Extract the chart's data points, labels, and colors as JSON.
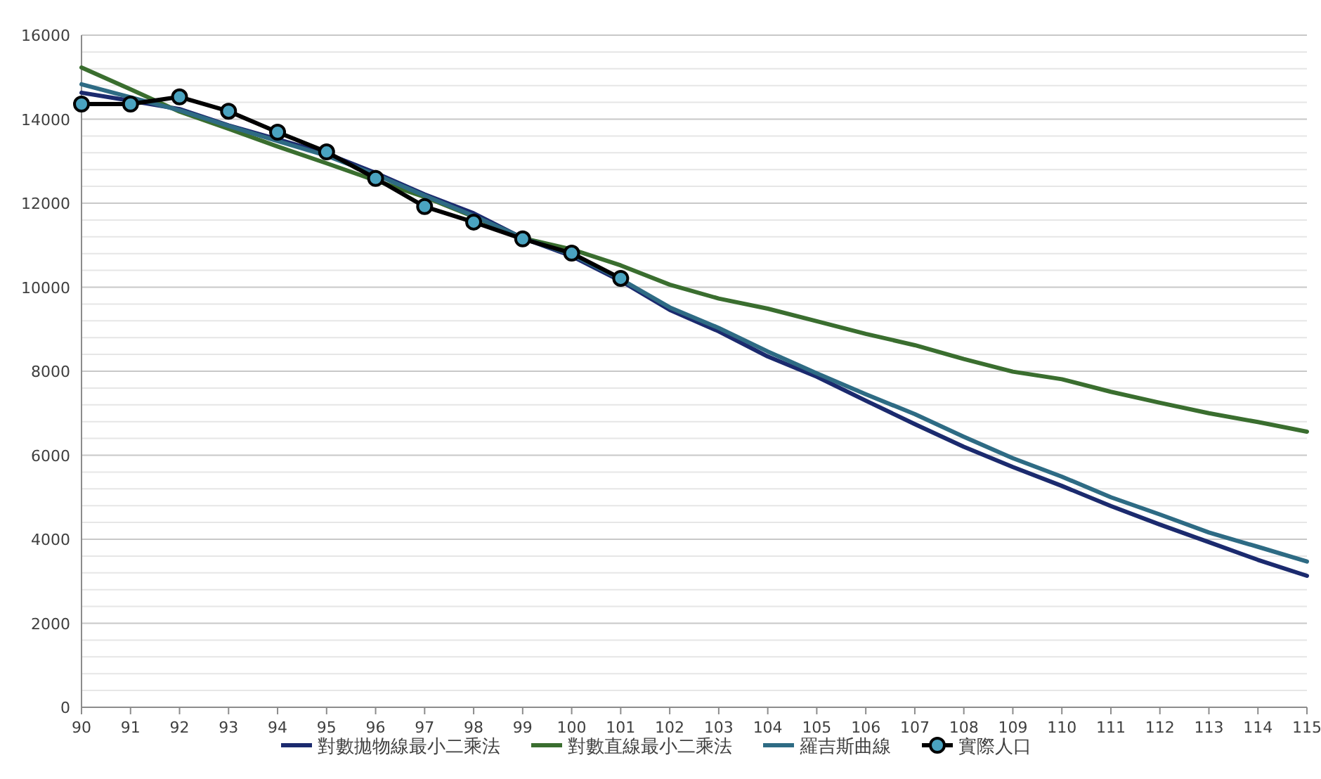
{
  "chart_data": {
    "type": "line",
    "x": [
      90,
      91,
      92,
      93,
      94,
      95,
      96,
      97,
      98,
      99,
      100,
      101,
      102,
      103,
      104,
      105,
      106,
      107,
      108,
      109,
      110,
      111,
      112,
      113,
      114,
      115
    ],
    "xlim": [
      90,
      115
    ],
    "xticks": [
      90,
      91,
      92,
      93,
      94,
      95,
      96,
      97,
      98,
      99,
      100,
      101,
      102,
      103,
      104,
      105,
      106,
      107,
      108,
      109,
      110,
      111,
      112,
      113,
      114,
      115
    ],
    "ylim": [
      0,
      16000
    ],
    "yticks": [
      0,
      {
        "value": 400,
        "label": null
      },
      {
        "value": 800,
        "label": null
      },
      {
        "value": 1200,
        "label": null
      },
      {
        "value": 1600,
        "label": null
      },
      2000,
      {
        "value": 2400,
        "label": null
      },
      {
        "value": 2800,
        "label": null
      },
      {
        "value": 3200,
        "label": null
      },
      {
        "value": 3600,
        "label": null
      },
      4000,
      {
        "value": 4400,
        "label": null
      },
      {
        "value": 4800,
        "label": null
      },
      {
        "value": 5200,
        "label": null
      },
      {
        "value": 5600,
        "label": null
      },
      6000,
      {
        "value": 6400,
        "label": null
      },
      {
        "value": 6800,
        "label": null
      },
      {
        "value": 7200,
        "label": null
      },
      {
        "value": 7600,
        "label": null
      },
      8000,
      {
        "value": 8400,
        "label": null
      },
      {
        "value": 8800,
        "label": null
      },
      {
        "value": 9200,
        "label": null
      },
      {
        "value": 9600,
        "label": null
      },
      10000,
      {
        "value": 10400,
        "label": null
      },
      {
        "value": 10800,
        "label": null
      },
      {
        "value": 11200,
        "label": null
      },
      {
        "value": 11600,
        "label": null
      },
      12000,
      {
        "value": 12400,
        "label": null
      },
      {
        "value": 12800,
        "label": null
      },
      {
        "value": 13200,
        "label": null
      },
      {
        "value": 13600,
        "label": null
      },
      14000,
      {
        "value": 14400,
        "label": null
      },
      {
        "value": 14800,
        "label": null
      },
      {
        "value": 15200,
        "label": null
      },
      {
        "value": 15600,
        "label": null
      },
      16000
    ],
    "grid": "y",
    "legend": "bottom",
    "series": [
      {
        "name": "對數拋物線最小二乘法",
        "color": "#1b2a6e",
        "marker": "none",
        "values": [
          14630,
          14440,
          14240,
          13850,
          13520,
          13180,
          12720,
          12210,
          11760,
          11170,
          10740,
          10150,
          9460,
          8950,
          8350,
          7870,
          7300,
          6740,
          6200,
          5720,
          5270,
          4790,
          4350,
          3930,
          3510,
          3130
        ]
      },
      {
        "name": "對數直線最小二乘法",
        "color": "#3a6e2f",
        "marker": "none",
        "values": [
          15230,
          14710,
          14180,
          13770,
          13350,
          12950,
          12540,
          12150,
          11680,
          11170,
          10900,
          10520,
          10060,
          9730,
          9490,
          9190,
          8890,
          8620,
          8290,
          7990,
          7810,
          7510,
          7250,
          7000,
          6790,
          6560
        ]
      },
      {
        "name": "羅吉斯曲線",
        "color": "#2e6b84",
        "marker": "none",
        "values": [
          14830,
          14520,
          14210,
          13840,
          13480,
          13130,
          12680,
          12180,
          11700,
          11170,
          10780,
          10190,
          9520,
          9030,
          8470,
          7950,
          7450,
          6980,
          6440,
          5930,
          5490,
          5000,
          4590,
          4160,
          3820,
          3470
        ]
      },
      {
        "name": "實際人口",
        "color": "#000000",
        "marker": "circle",
        "colors": [
          "#4aa3c0",
          "#4aa3c0",
          "#4aa3c0",
          "#4aa3c0",
          "#4aa3c0",
          "#4aa3c0",
          "#4aa3c0",
          "#4aa3c0",
          "#4aa3c0",
          "#4aa3c0",
          "#4aa3c0",
          "#4aa3c0"
        ],
        "x": [
          90,
          91,
          92,
          93,
          94,
          95,
          96,
          97,
          98,
          99,
          100,
          101
        ],
        "values": [
          14360,
          14360,
          14530,
          14190,
          13690,
          13220,
          12590,
          11920,
          11550,
          11150,
          10810,
          10210
        ]
      }
    ]
  }
}
